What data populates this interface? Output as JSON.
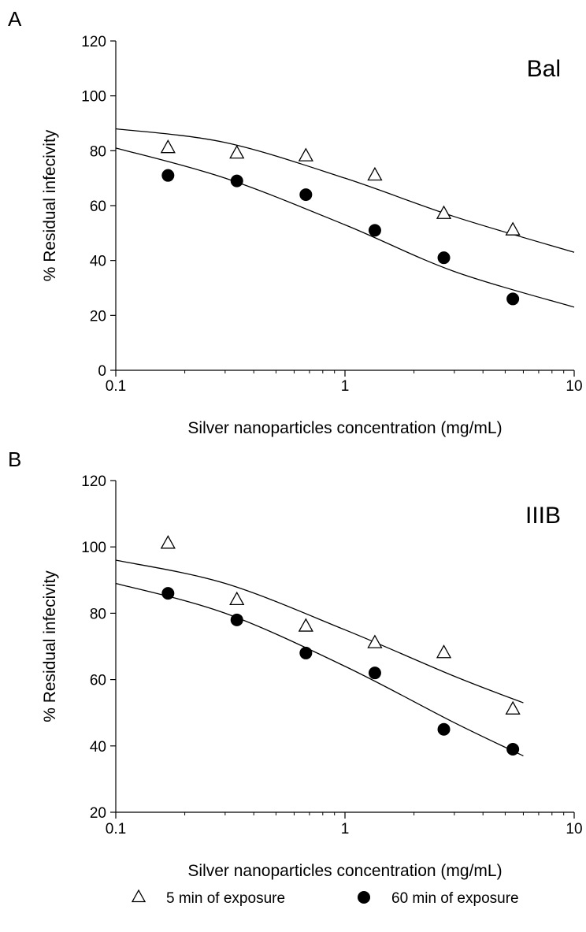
{
  "chart_data": [
    {
      "type": "scatter",
      "panel": "A",
      "title": "Bal",
      "xlabel": "Silver nanoparticles concentration (mg/mL)",
      "ylabel": "% Residual infecivity",
      "xscale": "log",
      "xlim": [
        0.1,
        10
      ],
      "ylim": [
        0,
        120
      ],
      "xticks": [
        0.1,
        1,
        10
      ],
      "xtick_labels": [
        "0.1",
        "1",
        "10"
      ],
      "yticks": [
        0,
        20,
        40,
        60,
        80,
        100,
        120
      ],
      "ytick_labels": [
        "0",
        "20",
        "40",
        "60",
        "80",
        "100",
        "120"
      ],
      "grid": false,
      "series": [
        {
          "name": "5 min of exposure",
          "marker": "open-triangle",
          "x": [
            0.169,
            0.3375,
            0.675,
            1.35,
            2.7,
            5.4
          ],
          "y": [
            81,
            79,
            78,
            71,
            57,
            51
          ],
          "fit_curve": {
            "x": [
              0.1,
              0.3,
              1,
              3,
              10
            ],
            "y": [
              88,
              83,
              70,
              56,
              43
            ]
          }
        },
        {
          "name": "60 min of exposure",
          "marker": "filled-circle",
          "x": [
            0.169,
            0.3375,
            0.675,
            1.35,
            2.7,
            5.4
          ],
          "y": [
            71,
            69,
            64,
            51,
            41,
            26
          ],
          "fit_curve": {
            "x": [
              0.1,
              0.3,
              1,
              3,
              10
            ],
            "y": [
              81,
              70,
              53,
              36,
              23
            ]
          }
        }
      ]
    },
    {
      "type": "scatter",
      "panel": "B",
      "title": "IIIB",
      "xlabel": "Silver nanoparticles concentration (mg/mL)",
      "ylabel": "% Residual infecivity",
      "xscale": "log",
      "xlim": [
        0.1,
        10
      ],
      "ylim": [
        20,
        120
      ],
      "xticks": [
        0.1,
        1,
        10
      ],
      "xtick_labels": [
        "0.1",
        "1",
        "10"
      ],
      "yticks": [
        20,
        40,
        60,
        80,
        100,
        120
      ],
      "ytick_labels": [
        "20",
        "40",
        "60",
        "80",
        "100",
        "120"
      ],
      "grid": false,
      "series": [
        {
          "name": "5 min of exposure",
          "marker": "open-triangle",
          "x": [
            0.169,
            0.3375,
            0.675,
            1.35,
            2.7,
            5.4
          ],
          "y": [
            101,
            84,
            76,
            71,
            68,
            51
          ],
          "fit_curve": {
            "x": [
              0.1,
              0.3,
              1,
              3,
              6
            ],
            "y": [
              96,
              89,
              75,
              61,
              53
            ]
          }
        },
        {
          "name": "60 min of exposure",
          "marker": "filled-circle",
          "x": [
            0.169,
            0.3375,
            0.675,
            1.35,
            2.7,
            5.4
          ],
          "y": [
            86,
            78,
            68,
            62,
            45,
            39
          ],
          "fit_curve": {
            "x": [
              0.1,
              0.3,
              1,
              3,
              6
            ],
            "y": [
              89,
              80,
              64,
              47,
              37
            ]
          }
        }
      ]
    }
  ],
  "legend": {
    "placement": "bottom",
    "items": [
      {
        "label": "5 min of exposure",
        "marker": "open-triangle"
      },
      {
        "label": "60 min of exposure",
        "marker": "filled-circle"
      }
    ]
  }
}
